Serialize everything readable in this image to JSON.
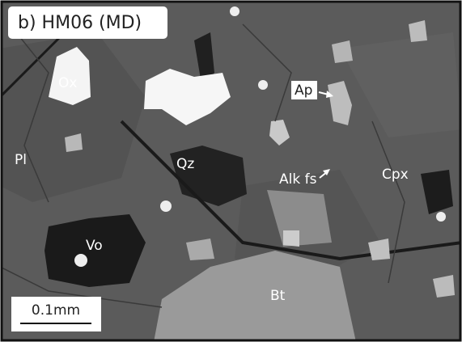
{
  "panel_label": "b) HM06 (MD)",
  "labels": [
    "Ox",
    "Ap",
    "Pl",
    "Qz",
    "Alk fs",
    "Cpx",
    "Vo",
    "Bt"
  ],
  "scale_bar": "0.1mm"
}
